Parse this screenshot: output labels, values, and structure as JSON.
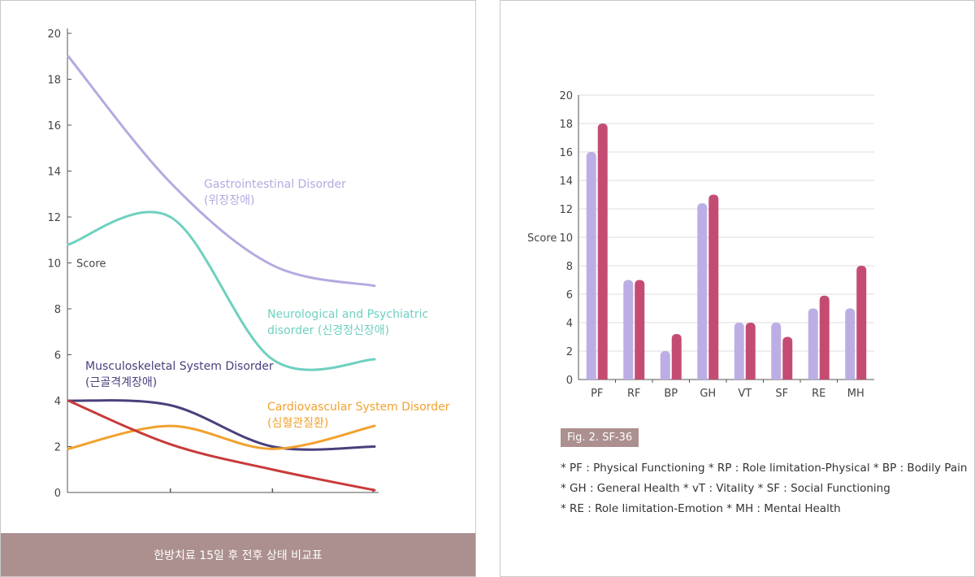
{
  "colors": {
    "gastro": "#b6a9e0",
    "neuro": "#6fd0c0",
    "musculo": "#4a3f7c",
    "cardio": "#f2a12e",
    "red": "#c93a3a",
    "bar_light": "#bcaee5",
    "bar_dark": "#c44c72",
    "caption_bg": "#ac8f8f",
    "axis": "#555555",
    "grid": "#dddddd"
  },
  "left_chart": {
    "y_label": "Score",
    "y_ticks": [
      "0",
      "2",
      "4",
      "6",
      "8",
      "10",
      "12",
      "14",
      "16",
      "18",
      "20"
    ],
    "caption": "한방치료 15일 후 전후 상태 비교표",
    "annotations": {
      "gastro": [
        "Gastrointestinal Disorder",
        "(위장장애)"
      ],
      "neuro": [
        "Neurological and Psychiatric",
        "disorder (신경정신장애)"
      ],
      "musculo": [
        "Musculoskeletal System Disorder",
        "(근골격계장애)"
      ],
      "cardio": [
        "Cardiovascular System Disorder",
        "(심혈관질환)"
      ]
    }
  },
  "right_chart": {
    "y_label": "Score",
    "y_ticks": [
      "0",
      "2",
      "4",
      "6",
      "8",
      "10",
      "12",
      "14",
      "16",
      "18",
      "20"
    ],
    "fig_label": "Fig. 2. SF-36",
    "notes": [
      "* PF : Physical Functioning * RP : Role limitation-Physical * BP : Bodily Pain",
      "* GH : General Health * vT : Vitality * SF : Social Functioning",
      "* RE : Role limitation-Emotion * MH : Mental Health"
    ]
  },
  "chart_data": [
    {
      "type": "line",
      "ylabel": "Score",
      "ylim": [
        0,
        20
      ],
      "x": [
        0,
        1,
        2,
        3
      ],
      "series": [
        {
          "name": "Gastrointestinal Disorder (위장장애)",
          "values": [
            19,
            13.5,
            9.9,
            9.0
          ]
        },
        {
          "name": "Neurological and Psychiatric disorder (신경정신장애)",
          "values": [
            10.8,
            12.0,
            5.8,
            5.8
          ]
        },
        {
          "name": "Musculoskeletal System Disorder (근골격계장애)",
          "values": [
            4.0,
            3.8,
            2.0,
            2.0
          ]
        },
        {
          "name": "Cardiovascular System Disorder (심혈관질환)",
          "values": [
            1.9,
            2.9,
            1.9,
            2.9
          ]
        },
        {
          "values": [
            4.0,
            2.1,
            1.0,
            0.1
          ]
        }
      ],
      "grid": false
    },
    {
      "type": "bar",
      "categories": [
        "PF",
        "RF",
        "BP",
        "GH",
        "VT",
        "SF",
        "RE",
        "MH"
      ],
      "ylabel": "Score",
      "ylim": [
        0,
        20
      ],
      "series": [
        {
          "values": [
            16,
            7,
            2,
            12.4,
            4,
            4,
            5,
            5
          ]
        },
        {
          "values": [
            18,
            7,
            3.2,
            13,
            4,
            3,
            5.9,
            8
          ]
        }
      ],
      "grid": true
    }
  ]
}
